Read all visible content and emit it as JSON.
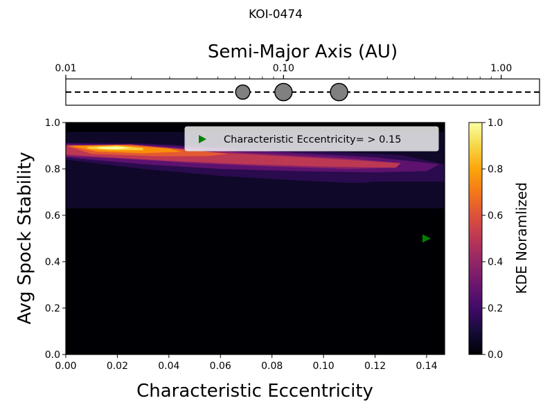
{
  "figure_title": "KOI-0474",
  "chart_data": [
    {
      "type": "scatter",
      "panel": "orbit-strip",
      "title": "Semi-Major Axis (AU)",
      "xscale": "log",
      "xlim": [
        0.01,
        1.5
      ],
      "ylim": [
        -1,
        1
      ],
      "ticks": [
        {
          "value": 0.01,
          "label": "0.01"
        },
        {
          "value": 0.1,
          "label": "0.10"
        },
        {
          "value": 1.0,
          "label": "1.00"
        }
      ],
      "planets": [
        {
          "a": 0.065,
          "relative_size": 0.8
        },
        {
          "a": 0.1,
          "relative_size": 1.0
        },
        {
          "a": 0.18,
          "relative_size": 1.0
        }
      ],
      "line_style": "dashed",
      "marker_color": "#808080"
    },
    {
      "type": "heatmap",
      "panel": "kde",
      "xlabel": "Characteristic Eccentricity",
      "ylabel": "Avg Spock Stability",
      "xlim": [
        0.0,
        0.147
      ],
      "ylim": [
        0.0,
        1.0
      ],
      "xticks": [
        {
          "value": 0.0,
          "label": "0.00"
        },
        {
          "value": 0.02,
          "label": "0.02"
        },
        {
          "value": 0.04,
          "label": "0.04"
        },
        {
          "value": 0.06,
          "label": "0.06"
        },
        {
          "value": 0.08,
          "label": "0.08"
        },
        {
          "value": 0.1,
          "label": "0.10"
        },
        {
          "value": 0.12,
          "label": "0.12"
        },
        {
          "value": 0.14,
          "label": "0.14"
        }
      ],
      "yticks": [
        {
          "value": 0.0,
          "label": "0.0"
        },
        {
          "value": 0.2,
          "label": "0.2"
        },
        {
          "value": 0.4,
          "label": "0.4"
        },
        {
          "value": 0.6,
          "label": "0.6"
        },
        {
          "value": 0.8,
          "label": "0.8"
        },
        {
          "value": 1.0,
          "label": "1.0"
        }
      ],
      "colormap": "inferno",
      "colorbar": {
        "label": "KDE Noramlized",
        "range": [
          0.0,
          1.0
        ],
        "ticks": [
          {
            "value": 0.0,
            "label": "0.0"
          },
          {
            "value": 0.2,
            "label": "0.2"
          },
          {
            "value": 0.4,
            "label": "0.4"
          },
          {
            "value": 0.6,
            "label": "0.6"
          },
          {
            "value": 0.8,
            "label": "0.8"
          },
          {
            "value": 1.0,
            "label": "1.0"
          }
        ]
      },
      "density_support": {
        "y_range": [
          0.63,
          0.96
        ],
        "x_range": [
          0.0,
          0.147
        ]
      },
      "density_peak": {
        "x": 0.018,
        "y": 0.89
      },
      "marker": {
        "x": 0.14,
        "y": 0.5,
        "color": "#008000",
        "shape": "triangle-right"
      },
      "legend": {
        "label": "Characteristic Eccentricity= > 0.15",
        "placement": "upper-right"
      }
    }
  ]
}
